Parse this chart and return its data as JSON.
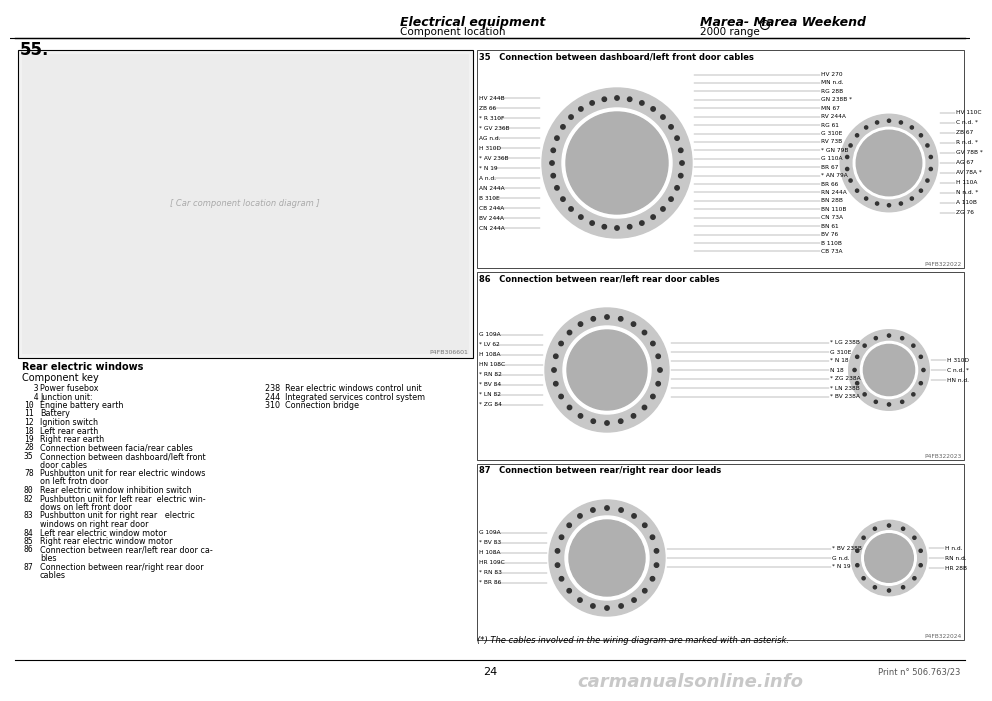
{
  "header_left1": "Electrical equipment",
  "header_left2": "Component location",
  "header_right1": "Marea- Marea Weekend",
  "header_right2": "2000 range",
  "page_number": "24",
  "print_number": "Print n° 506.763/23",
  "watermark": "carmanualsonline.info",
  "section_title": "55.",
  "left_panel_title": "Rear electric windows",
  "component_key_title": "Component key",
  "component_key_left": [
    [
      "  3",
      "Power fusebox"
    ],
    [
      "  4",
      "Junction unit:"
    ],
    [
      "10",
      "Engine battery earth"
    ],
    [
      "11",
      "Battery"
    ],
    [
      "12",
      "Ignition switch"
    ],
    [
      "18",
      "Left rear earth"
    ],
    [
      "19",
      "Right rear earth"
    ],
    [
      "28",
      "Connection between facia/rear cables"
    ],
    [
      "35",
      "Connection between dashboard/left front"
    ],
    [
      "",
      "door cables"
    ],
    [
      "78",
      "Pushbutton unit for rear electric windows"
    ],
    [
      "",
      "on left frotn door"
    ],
    [
      "80",
      "Rear electric window inhibition switch"
    ],
    [
      "82",
      "Pushbutton unit for left rear  electric win-"
    ],
    [
      "",
      "dows on left front door"
    ],
    [
      "83",
      "Pushbutton unit for right rear   electric"
    ],
    [
      "",
      "windows on right rear door"
    ],
    [
      "84",
      "Left rear electric window motor"
    ],
    [
      "85",
      "Right rear electric window motor"
    ],
    [
      "86",
      "Connection between rear/left rear door ca-"
    ],
    [
      "",
      "bles"
    ],
    [
      "87",
      "Connection between rear/right rear door"
    ],
    [
      "",
      "cables"
    ]
  ],
  "component_key_right": [
    "238  Rear electric windows control unit",
    "244  Integrated services control system",
    "310  Connection bridge"
  ],
  "diagram35_title": "35   Connection between dashboard/left front door cables",
  "diagram86_title": "86   Connection between rear/left rear door cables",
  "diagram87_title": "87   Connection between rear/right rear door leads",
  "footnote": "(*) The cables involved in the wiring diagram are marked with an asterisk.",
  "photo_ref1": "P4FB306601",
  "photo_ref2": "P4FB322022",
  "photo_ref3": "P4FB322023",
  "photo_ref4": "P4FB322024",
  "bg_color": "#ffffff",
  "diagram35_left_labels": [
    "HV 244B",
    "ZB 66",
    "* R 310F",
    "* GV 236B",
    "AG n.d.",
    "H 310D",
    "* AV 236B",
    "* N 19",
    "A n.d.",
    "AN 244A",
    "B 310E",
    "CB 244A",
    "BV 244A",
    "CN 244A"
  ],
  "diagram35_right_labels": [
    "HV 270",
    "MN n.d.",
    "RG 28B",
    "GN 238B *",
    "MN 67",
    "RV 244A",
    "RG 61",
    "G 310E",
    "RV 73B",
    "* GN 79B",
    "G 110A",
    "BR 67",
    "* AN 79A",
    "BR 66",
    "RN 244A",
    "BN 28B",
    "BN 110B",
    "CN 73A",
    "BN 61",
    "BV 76",
    "B 110B",
    "CB 73A"
  ],
  "diagram35_far_right": [
    "HV 110C",
    "C n.d. *",
    "ZB 67",
    "R n.d. *",
    "GV 78B *",
    "AG 67",
    "AV 78A *",
    "H 110A",
    "N n.d. *",
    "A 110B",
    "ZG 76"
  ],
  "diagram86_left_labels": [
    "G 109A",
    "* LV 62",
    "H 108A",
    "HN 108C",
    "* RN 82",
    "* BV 84",
    "* LN 82",
    "* ZG 84"
  ],
  "diagram86_right_labels": [
    "* LG 238B",
    "G 310E",
    "* N 18",
    "N 18",
    "* ZG 238A",
    "* LN 238B",
    "* BV 238A"
  ],
  "diagram86_far_right": [
    "H 310D",
    "C n.d. *",
    "HN n.d."
  ],
  "diagram87_left_labels": [
    "G 109A",
    "* BV 83",
    "H 108A",
    "HR 109C",
    "* RN 83",
    "* BR 86"
  ],
  "diagram87_right_labels": [
    "* BV 238B",
    "G n.d.",
    "* N 19"
  ],
  "diagram87_far_right": [
    "H n.d.",
    "RN n.d.",
    "HR 28B"
  ]
}
